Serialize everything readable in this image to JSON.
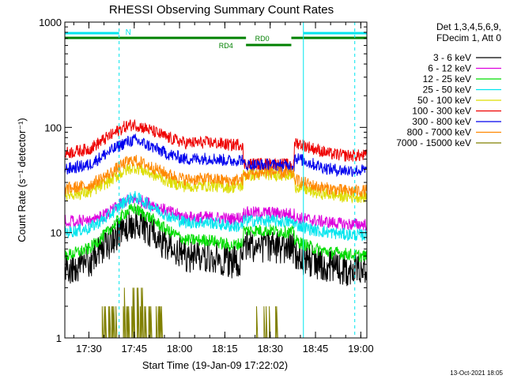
{
  "colors": {
    "background": "#ffffff",
    "axis": "#000000",
    "attenuator_line": "#00e5ee",
    "rate_line": "#008000",
    "marker_line": "#00e5ee"
  },
  "chart_data": {
    "type": "line",
    "title": "RHESSI Observing Summary Count Rates",
    "xlabel": "Start Time (19-Jan-09 17:22:02)",
    "ylabel": "Count Rate (s⁻¹ detector⁻¹)",
    "y_scale": "log",
    "ylim": [
      1,
      1000
    ],
    "x_range": [
      "17:22:02",
      "19:02"
    ],
    "x_ticks": [
      "17:30",
      "17:45",
      "18:00",
      "18:15",
      "18:30",
      "18:45",
      "19:00"
    ],
    "y_ticks": [
      "1",
      "10",
      "100",
      "1000"
    ],
    "legend_header": [
      "Det 1,3,4,5,6,9,",
      "FDecim 1, Att 0"
    ],
    "legend_position": "right",
    "timestamp": "13-Oct-2021 18:05",
    "series": [
      {
        "name": "3 - 6 keV",
        "color": "#000000",
        "x": [
          "17:22",
          "17:30",
          "17:36",
          "17:42",
          "17:45",
          "17:50",
          "17:56",
          "18:02",
          "18:10",
          "18:17",
          "18:21",
          "18:21",
          "18:30",
          "18:38",
          "18:38",
          "18:45",
          "18:50",
          "18:55",
          "19:00"
        ],
        "values": [
          4.5,
          5.3,
          7.5,
          11.5,
          12.5,
          10.5,
          7.3,
          6.0,
          6.0,
          5.3,
          5.5,
          7.5,
          7.5,
          7.0,
          6.0,
          5.2,
          4.8,
          4.5,
          4.4
        ]
      },
      {
        "name": "6 - 12 keV",
        "color": "#dd00dd",
        "x": [
          "17:22",
          "17:30",
          "17:36",
          "17:42",
          "17:45",
          "17:50",
          "17:56",
          "18:02",
          "18:10",
          "18:17",
          "18:21",
          "18:21",
          "18:30",
          "18:38",
          "18:38",
          "18:45",
          "18:50",
          "18:55",
          "19:00"
        ],
        "values": [
          13,
          13,
          15,
          20,
          21,
          19,
          16,
          14,
          14,
          13.5,
          14,
          15.5,
          15.5,
          15,
          14,
          13,
          12.5,
          12,
          12
        ]
      },
      {
        "name": "12 - 25 keV",
        "color": "#00dd00",
        "x": [
          "17:22",
          "17:30",
          "17:36",
          "17:42",
          "17:45",
          "17:50",
          "17:56",
          "18:02",
          "18:10",
          "18:17",
          "18:21",
          "18:21",
          "18:30",
          "18:38",
          "18:38",
          "18:45",
          "18:50",
          "18:55",
          "19:00"
        ],
        "values": [
          6,
          7,
          10,
          15.5,
          17,
          14,
          10.5,
          8.5,
          8.5,
          7.5,
          8,
          10.5,
          10.5,
          10,
          8.5,
          7,
          6.5,
          6.3,
          6
        ]
      },
      {
        "name": "25 - 50 keV",
        "color": "#00e5ee",
        "x": [
          "17:22",
          "17:30",
          "17:36",
          "17:42",
          "17:45",
          "17:50",
          "17:56",
          "18:02",
          "18:10",
          "18:17",
          "18:21",
          "18:21",
          "18:30",
          "18:38",
          "18:38",
          "18:45",
          "18:50",
          "18:55",
          "19:00"
        ],
        "values": [
          10,
          11,
          14,
          20,
          22,
          18.5,
          14.5,
          12.5,
          12.5,
          11.5,
          11.5,
          13,
          13,
          12.5,
          12,
          10.5,
          10,
          9.6,
          9.5
        ]
      },
      {
        "name": "50 - 100 keV",
        "color": "#dddd00",
        "x": [
          "17:22",
          "17:30",
          "17:36",
          "17:42",
          "17:45",
          "17:50",
          "17:56",
          "18:02",
          "18:10",
          "18:17",
          "18:21",
          "18:21",
          "18:30",
          "18:38",
          "18:38",
          "18:45",
          "18:50",
          "18:55",
          "19:00"
        ],
        "values": [
          23,
          24,
          30,
          39,
          42,
          37,
          31,
          27.5,
          28,
          27,
          28,
          35,
          36,
          35,
          28,
          24,
          23,
          22,
          22
        ]
      },
      {
        "name": "100 - 300 keV",
        "color": "#ee0000",
        "x": [
          "17:22",
          "17:30",
          "17:36",
          "17:42",
          "17:45",
          "17:50",
          "17:56",
          "18:02",
          "18:10",
          "18:17",
          "18:21",
          "18:21",
          "18:30",
          "18:38",
          "18:38",
          "18:45",
          "18:50",
          "18:55",
          "19:00"
        ],
        "values": [
          57,
          62,
          80,
          102,
          107,
          95,
          80,
          71,
          72,
          68,
          70,
          45,
          45,
          44,
          73,
          62,
          56,
          54,
          54
        ]
      },
      {
        "name": "300 - 800 keV",
        "color": "#0000ee",
        "x": [
          "17:22",
          "17:30",
          "17:36",
          "17:42",
          "17:45",
          "17:50",
          "17:56",
          "18:02",
          "18:10",
          "18:17",
          "18:21",
          "18:21",
          "18:30",
          "18:38",
          "18:38",
          "18:45",
          "18:50",
          "18:55",
          "19:00"
        ],
        "values": [
          40,
          44,
          57,
          72,
          76,
          67,
          56,
          50,
          51,
          48,
          50,
          44,
          44,
          43,
          52,
          44,
          40,
          39,
          39
        ]
      },
      {
        "name": "800 - 7000 keV",
        "color": "#ff8800",
        "x": [
          "17:22",
          "17:30",
          "17:36",
          "17:42",
          "17:45",
          "17:50",
          "17:56",
          "18:02",
          "18:10",
          "18:17",
          "18:21",
          "18:21",
          "18:30",
          "18:38",
          "18:38",
          "18:45",
          "18:50",
          "18:55",
          "19:00"
        ],
        "values": [
          26,
          28,
          35,
          46,
          49,
          43,
          36,
          32,
          32.5,
          31,
          32,
          35,
          38,
          36,
          32,
          27.5,
          26,
          25,
          25
        ]
      },
      {
        "name": "7000 - 15000 keV",
        "color": "#808000",
        "x": [
          "17:33",
          "17:37",
          "17:41",
          "17:45",
          "17:49",
          "17:53",
          "17:56",
          "18:14",
          "18:24",
          "18:28",
          "18:34"
        ],
        "values": [
          1,
          2,
          2,
          3,
          2,
          2,
          1,
          1,
          1,
          2,
          1
        ]
      }
    ],
    "annotations": {
      "attenuator_label": "N",
      "rate_labels": [
        "RD0",
        "RD4"
      ],
      "marker_times": [
        "17:40",
        "18:41",
        "18:58"
      ]
    }
  }
}
